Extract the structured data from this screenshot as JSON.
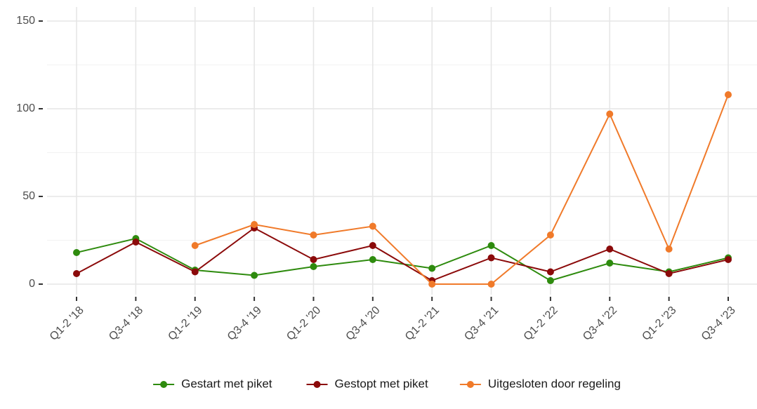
{
  "chart_data": {
    "type": "line",
    "categories": [
      "Q1-2 '18",
      "Q3-4 '18",
      "Q1-2 '19",
      "Q3-4 '19",
      "Q1-2 '20",
      "Q3-4 '20",
      "Q1-2 '21",
      "Q3-4 '21",
      "Q1-2 '22",
      "Q3-4 '22",
      "Q1-2 '23",
      "Q3-4 '23"
    ],
    "series": [
      {
        "name": "Gestart met piket",
        "color": "#2e8b0e",
        "values": [
          18,
          26,
          8,
          5,
          10,
          14,
          9,
          22,
          2,
          12,
          7,
          15
        ]
      },
      {
        "name": "Gestopt met piket",
        "color": "#8b0a0a",
        "values": [
          6,
          24,
          7,
          32,
          14,
          22,
          2,
          15,
          7,
          20,
          6,
          14
        ]
      },
      {
        "name": "Uitgesloten door regeling",
        "color": "#f07a2a",
        "values": [
          null,
          null,
          22,
          34,
          28,
          33,
          0,
          0,
          28,
          97,
          20,
          108
        ]
      }
    ],
    "ylim": [
      -6,
      158
    ],
    "yticks": [
      0,
      50,
      100,
      150
    ],
    "grid": true,
    "legend": "bottom"
  }
}
